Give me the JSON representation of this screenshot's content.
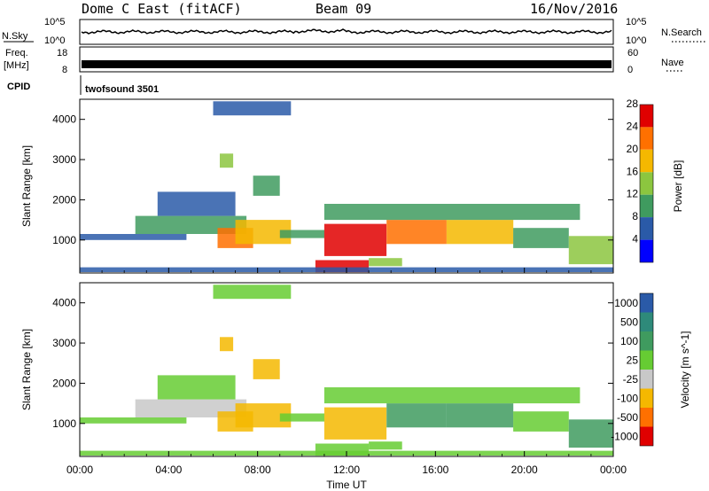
{
  "header": {
    "radar": "Dome C East (fitACF)",
    "beam": "Beam 09",
    "date": "16/Nov/2016"
  },
  "strips": {
    "nsky_label": "N.Sky",
    "nsky_ticks": [
      "10^5",
      "10^0"
    ],
    "nsearch_label": "N.Search",
    "nsearch_ticks": [
      "10^5",
      "10^0"
    ],
    "freq_label_line1": "Freq.",
    "freq_label_line2": "[MHz]",
    "freq_ticks": [
      "18",
      "8"
    ],
    "nave_label": "Nave",
    "nave_ticks": [
      "60",
      "0"
    ],
    "cpid_label": "CPID",
    "cpid_value": "twofsound 3501"
  },
  "axes": {
    "ylabel": "Slant Range [km]",
    "xlabel": "Time UT",
    "y_ticks": [
      "1000",
      "2000",
      "3000",
      "4000"
    ],
    "x_ticks": [
      "00:00",
      "04:00",
      "08:00",
      "12:00",
      "16:00",
      "20:00",
      "00:00"
    ]
  },
  "chart_data": [
    {
      "type": "heatmap",
      "title": "",
      "quantity": "Power",
      "colorbar_label": "Power [dB]",
      "xlabel": "Time UT",
      "ylabel": "Slant Range [km]",
      "xlim": [
        0,
        24
      ],
      "ylim": [
        180,
        4500
      ],
      "colorbar_ticks": [
        "28",
        "24",
        "20",
        "16",
        "12",
        "8",
        "4"
      ],
      "colors": [
        "#e00000",
        "#ff7000",
        "#f5b800",
        "#8cc63f",
        "#3f9b5f",
        "#2a5aa8",
        "#0000ff"
      ],
      "cells": [
        {
          "t0": 0.0,
          "t1": 4.8,
          "r0": 1000,
          "r1": 1150,
          "v": 9
        },
        {
          "t0": 2.5,
          "t1": 7.5,
          "r0": 1150,
          "r1": 1600,
          "v": 13
        },
        {
          "t0": 3.5,
          "t1": 7.0,
          "r0": 1600,
          "r1": 2200,
          "v": 9
        },
        {
          "t0": 6.2,
          "t1": 7.8,
          "r0": 800,
          "r1": 1300,
          "v": 24
        },
        {
          "t0": 7.0,
          "t1": 9.5,
          "r0": 900,
          "r1": 1500,
          "v": 18
        },
        {
          "t0": 6.3,
          "t1": 6.9,
          "r0": 2800,
          "r1": 3150,
          "v": 14
        },
        {
          "t0": 7.8,
          "t1": 9.0,
          "r0": 2100,
          "r1": 2600,
          "v": 10
        },
        {
          "t0": 6.0,
          "t1": 9.5,
          "r0": 4100,
          "r1": 4450,
          "v": 8
        },
        {
          "t0": 9.0,
          "t1": 11.0,
          "r0": 1050,
          "r1": 1250,
          "v": 10
        },
        {
          "t0": 11.0,
          "t1": 13.8,
          "r0": 600,
          "r1": 1400,
          "v": 26
        },
        {
          "t0": 13.8,
          "t1": 16.5,
          "r0": 900,
          "r1": 1500,
          "v": 22
        },
        {
          "t0": 16.5,
          "t1": 19.5,
          "r0": 900,
          "r1": 1500,
          "v": 21
        },
        {
          "t0": 10.6,
          "t1": 13.0,
          "r0": 200,
          "r1": 500,
          "v": 26
        },
        {
          "t0": 13.0,
          "t1": 14.5,
          "r0": 350,
          "r1": 550,
          "v": 16
        },
        {
          "t0": 19.5,
          "t1": 22.0,
          "r0": 800,
          "r1": 1300,
          "v": 11
        },
        {
          "t0": 22.0,
          "t1": 24.0,
          "r0": 400,
          "r1": 1100,
          "v": 15
        },
        {
          "t0": 11.0,
          "t1": 22.5,
          "r0": 1500,
          "r1": 1900,
          "v": 11
        },
        {
          "t0": 0.0,
          "t1": 24.0,
          "r0": 200,
          "r1": 320,
          "v": 8
        }
      ]
    },
    {
      "type": "heatmap",
      "title": "",
      "quantity": "Velocity",
      "colorbar_label": "Velocity [m s^-1]",
      "xlabel": "Time UT",
      "ylabel": "Slant Range [km]",
      "xlim": [
        0,
        24
      ],
      "ylim": [
        180,
        4500
      ],
      "colorbar_ticks": [
        "1000",
        "500",
        "100",
        "25",
        "-25",
        "-100",
        "-500",
        "-1000"
      ],
      "colors": [
        "#2a5aa8",
        "#2e8a7a",
        "#3f9b5f",
        "#66cc33",
        "#c8c8c8",
        "#f5b800",
        "#ff7000",
        "#e00000"
      ],
      "cells": [
        {
          "t0": 0.0,
          "t1": 4.8,
          "r0": 1000,
          "r1": 1150,
          "v": 0
        },
        {
          "t0": 2.5,
          "t1": 7.5,
          "r0": 1150,
          "r1": 1600,
          "v": -60
        },
        {
          "t0": 3.5,
          "t1": 7.0,
          "r0": 1600,
          "r1": 2200,
          "v": 0
        },
        {
          "t0": 6.2,
          "t1": 7.8,
          "r0": 800,
          "r1": 1300,
          "v": -150
        },
        {
          "t0": 7.0,
          "t1": 9.5,
          "r0": 900,
          "r1": 1500,
          "v": -120
        },
        {
          "t0": 6.3,
          "t1": 6.9,
          "r0": 2800,
          "r1": 3150,
          "v": -120
        },
        {
          "t0": 7.8,
          "t1": 9.0,
          "r0": 2100,
          "r1": 2600,
          "v": -80
        },
        {
          "t0": 6.0,
          "t1": 9.5,
          "r0": 4100,
          "r1": 4450,
          "v": 0
        },
        {
          "t0": 9.0,
          "t1": 11.0,
          "r0": 1050,
          "r1": 1250,
          "v": 0
        },
        {
          "t0": 11.0,
          "t1": 13.8,
          "r0": 600,
          "r1": 1400,
          "v": -120
        },
        {
          "t0": 13.8,
          "t1": 16.5,
          "r0": 900,
          "r1": 1500,
          "v": 150
        },
        {
          "t0": 16.5,
          "t1": 19.5,
          "r0": 900,
          "r1": 1500,
          "v": 140
        },
        {
          "t0": 10.6,
          "t1": 13.0,
          "r0": 200,
          "r1": 500,
          "v": 0
        },
        {
          "t0": 13.0,
          "t1": 14.5,
          "r0": 350,
          "r1": 550,
          "v": 0
        },
        {
          "t0": 19.5,
          "t1": 22.0,
          "r0": 800,
          "r1": 1300,
          "v": 0
        },
        {
          "t0": 22.0,
          "t1": 24.0,
          "r0": 400,
          "r1": 1100,
          "v": 120
        },
        {
          "t0": 11.0,
          "t1": 22.5,
          "r0": 1500,
          "r1": 1900,
          "v": 60
        },
        {
          "t0": 0.0,
          "t1": 24.0,
          "r0": 200,
          "r1": 320,
          "v": 60
        }
      ]
    }
  ]
}
